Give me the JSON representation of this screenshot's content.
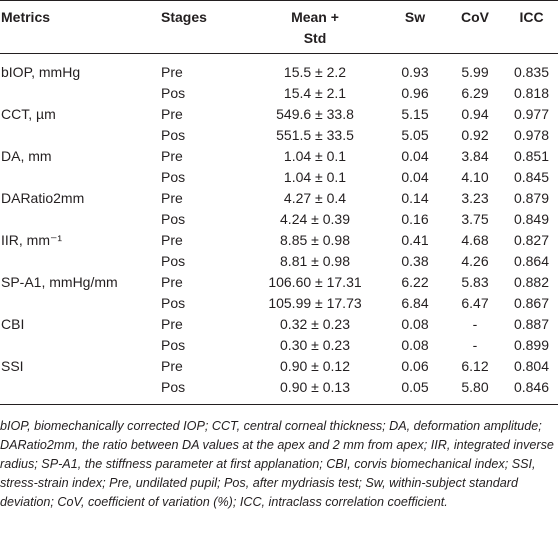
{
  "table": {
    "header": [
      "Metrics",
      "Stages",
      "Mean +\nStd",
      "Sw",
      "CoV",
      "ICC"
    ],
    "groups": [
      {
        "metric": "bIOP, mmHg",
        "rows": [
          [
            "Pre",
            "15.5 ± 2.2",
            "0.93",
            "5.99",
            "0.835"
          ],
          [
            "Pos",
            "15.4 ± 2.1",
            "0.96",
            "6.29",
            "0.818"
          ]
        ]
      },
      {
        "metric": "CCT, µm",
        "rows": [
          [
            "Pre",
            "549.6 ± 33.8",
            "5.15",
            "0.94",
            "0.977"
          ],
          [
            "Pos",
            "551.5 ± 33.5",
            "5.05",
            "0.92",
            "0.978"
          ]
        ]
      },
      {
        "metric": "DA, mm",
        "rows": [
          [
            "Pre",
            "1.04 ± 0.1",
            "0.04",
            "3.84",
            "0.851"
          ],
          [
            "Pos",
            "1.04 ± 0.1",
            "0.04",
            "4.10",
            "0.845"
          ]
        ]
      },
      {
        "metric": "DARatio2mm",
        "rows": [
          [
            "Pre",
            "4.27 ± 0.4",
            "0.14",
            "3.23",
            "0.879"
          ],
          [
            "Pos",
            "4.24 ± 0.39",
            "0.16",
            "3.75",
            "0.849"
          ]
        ]
      },
      {
        "metric": "IIR, mm⁻¹",
        "rows": [
          [
            "Pre",
            "8.85 ± 0.98",
            "0.41",
            "4.68",
            "0.827"
          ],
          [
            "Pos",
            "8.81 ± 0.98",
            "0.38",
            "4.26",
            "0.864"
          ]
        ]
      },
      {
        "metric": "SP-A1, mmHg/mm",
        "rows": [
          [
            "Pre",
            "106.60 ± 17.31",
            "6.22",
            "5.83",
            "0.882"
          ],
          [
            "Pos",
            "105.99 ± 17.73",
            "6.84",
            "6.47",
            "0.867"
          ]
        ]
      },
      {
        "metric": "CBI",
        "rows": [
          [
            "Pre",
            "0.32 ± 0.23",
            "0.08",
            "-",
            "0.887"
          ],
          [
            "Pos",
            "0.30 ± 0.23",
            "0.08",
            "-",
            "0.899"
          ]
        ]
      },
      {
        "metric": "SSI",
        "rows": [
          [
            "Pre",
            "0.90 ± 0.12",
            "0.06",
            "6.12",
            "0.804"
          ],
          [
            "Pos",
            "0.90 ± 0.13",
            "0.05",
            "5.80",
            "0.846"
          ]
        ]
      }
    ]
  },
  "footnote": "bIOP, biomechanically corrected IOP; CCT, central corneal thickness; DA, deformation amplitude; DARatio2mm, the ratio between DA values at the apex and 2 mm from apex; IIR, integrated inverse radius; SP-A1, the stiffness parameter at first applanation; CBI, corvis biomechanical index; SSI, stress-strain index; Pre, undilated pupil; Pos, after mydriasis test; Sw, within-subject standard deviation; CoV, coefficient of variation (%); ICC, intraclass correlation coefficient."
}
